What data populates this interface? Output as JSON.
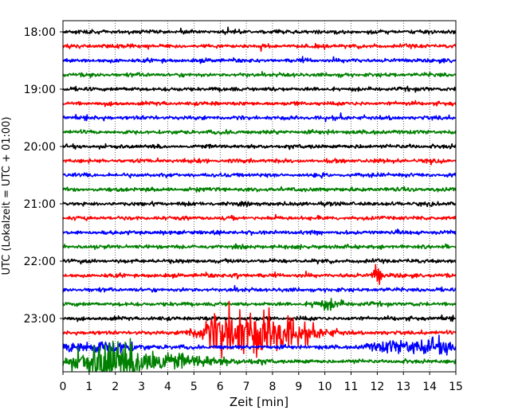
{
  "chart_data": {
    "type": "line",
    "title": "",
    "xlabel": "Zeit  [min]",
    "ylabel": "UTC (Lokalzeit = UTC + 01:00)",
    "xlim": [
      0,
      15
    ],
    "x_ticks": [
      "0",
      "1",
      "2",
      "3",
      "4",
      "5",
      "6",
      "7",
      "8",
      "9",
      "10",
      "11",
      "12",
      "13",
      "14",
      "15"
    ],
    "y_ticks": [
      "18:00",
      "19:00",
      "20:00",
      "21:00",
      "22:00",
      "23:00"
    ],
    "grid": {
      "vertical_dotted": true,
      "horizontal": false
    },
    "row_interval_minutes": 15,
    "trace_colors": [
      "#000000",
      "#ff0000",
      "#0000ff",
      "#008000"
    ],
    "traces": [
      {
        "start": "18:00",
        "color": "#000000"
      },
      {
        "start": "18:15",
        "color": "#ff0000"
      },
      {
        "start": "18:30",
        "color": "#0000ff"
      },
      {
        "start": "18:45",
        "color": "#008000"
      },
      {
        "start": "19:00",
        "color": "#000000"
      },
      {
        "start": "19:15",
        "color": "#ff0000"
      },
      {
        "start": "19:30",
        "color": "#0000ff"
      },
      {
        "start": "19:45",
        "color": "#008000"
      },
      {
        "start": "20:00",
        "color": "#000000"
      },
      {
        "start": "20:15",
        "color": "#ff0000"
      },
      {
        "start": "20:30",
        "color": "#0000ff"
      },
      {
        "start": "20:45",
        "color": "#008000"
      },
      {
        "start": "21:00",
        "color": "#000000"
      },
      {
        "start": "21:15",
        "color": "#ff0000"
      },
      {
        "start": "21:30",
        "color": "#0000ff"
      },
      {
        "start": "21:45",
        "color": "#008000"
      },
      {
        "start": "22:00",
        "color": "#000000"
      },
      {
        "start": "22:15",
        "color": "#ff0000",
        "events": [
          {
            "t": 12.0,
            "amp": 2.2,
            "dur": 0.15
          },
          {
            "t": 6.6,
            "amp": 0.8,
            "dur": 0.1
          }
        ]
      },
      {
        "start": "22:30",
        "color": "#0000ff"
      },
      {
        "start": "22:45",
        "color": "#008000",
        "events": [
          {
            "t": 10.2,
            "amp": 0.6,
            "dur": 0.6
          }
        ]
      },
      {
        "start": "23:00",
        "color": "#000000"
      },
      {
        "start": "23:15",
        "color": "#ff0000",
        "events": [
          {
            "t": 6.0,
            "amp": 2.3,
            "dur": 0.8
          },
          {
            "t": 7.4,
            "amp": 3.0,
            "dur": 1.3
          },
          {
            "t": 8.8,
            "amp": 1.0,
            "dur": 1.2
          }
        ]
      },
      {
        "start": "23:30",
        "color": "#0000ff",
        "events": [
          {
            "t": 1.3,
            "amp": 0.8,
            "dur": 1.5
          },
          {
            "t": 12.6,
            "amp": 0.8,
            "dur": 0.8
          },
          {
            "t": 14.3,
            "amp": 1.0,
            "dur": 1.0
          }
        ]
      },
      {
        "start": "23:45",
        "color": "#008000",
        "events": [
          {
            "t": 1.6,
            "amp": 2.4,
            "dur": 1.3
          },
          {
            "t": 2.9,
            "amp": 1.5,
            "dur": 1.3
          },
          {
            "t": 4.8,
            "amp": 0.6,
            "dur": 2.0
          }
        ]
      }
    ]
  }
}
